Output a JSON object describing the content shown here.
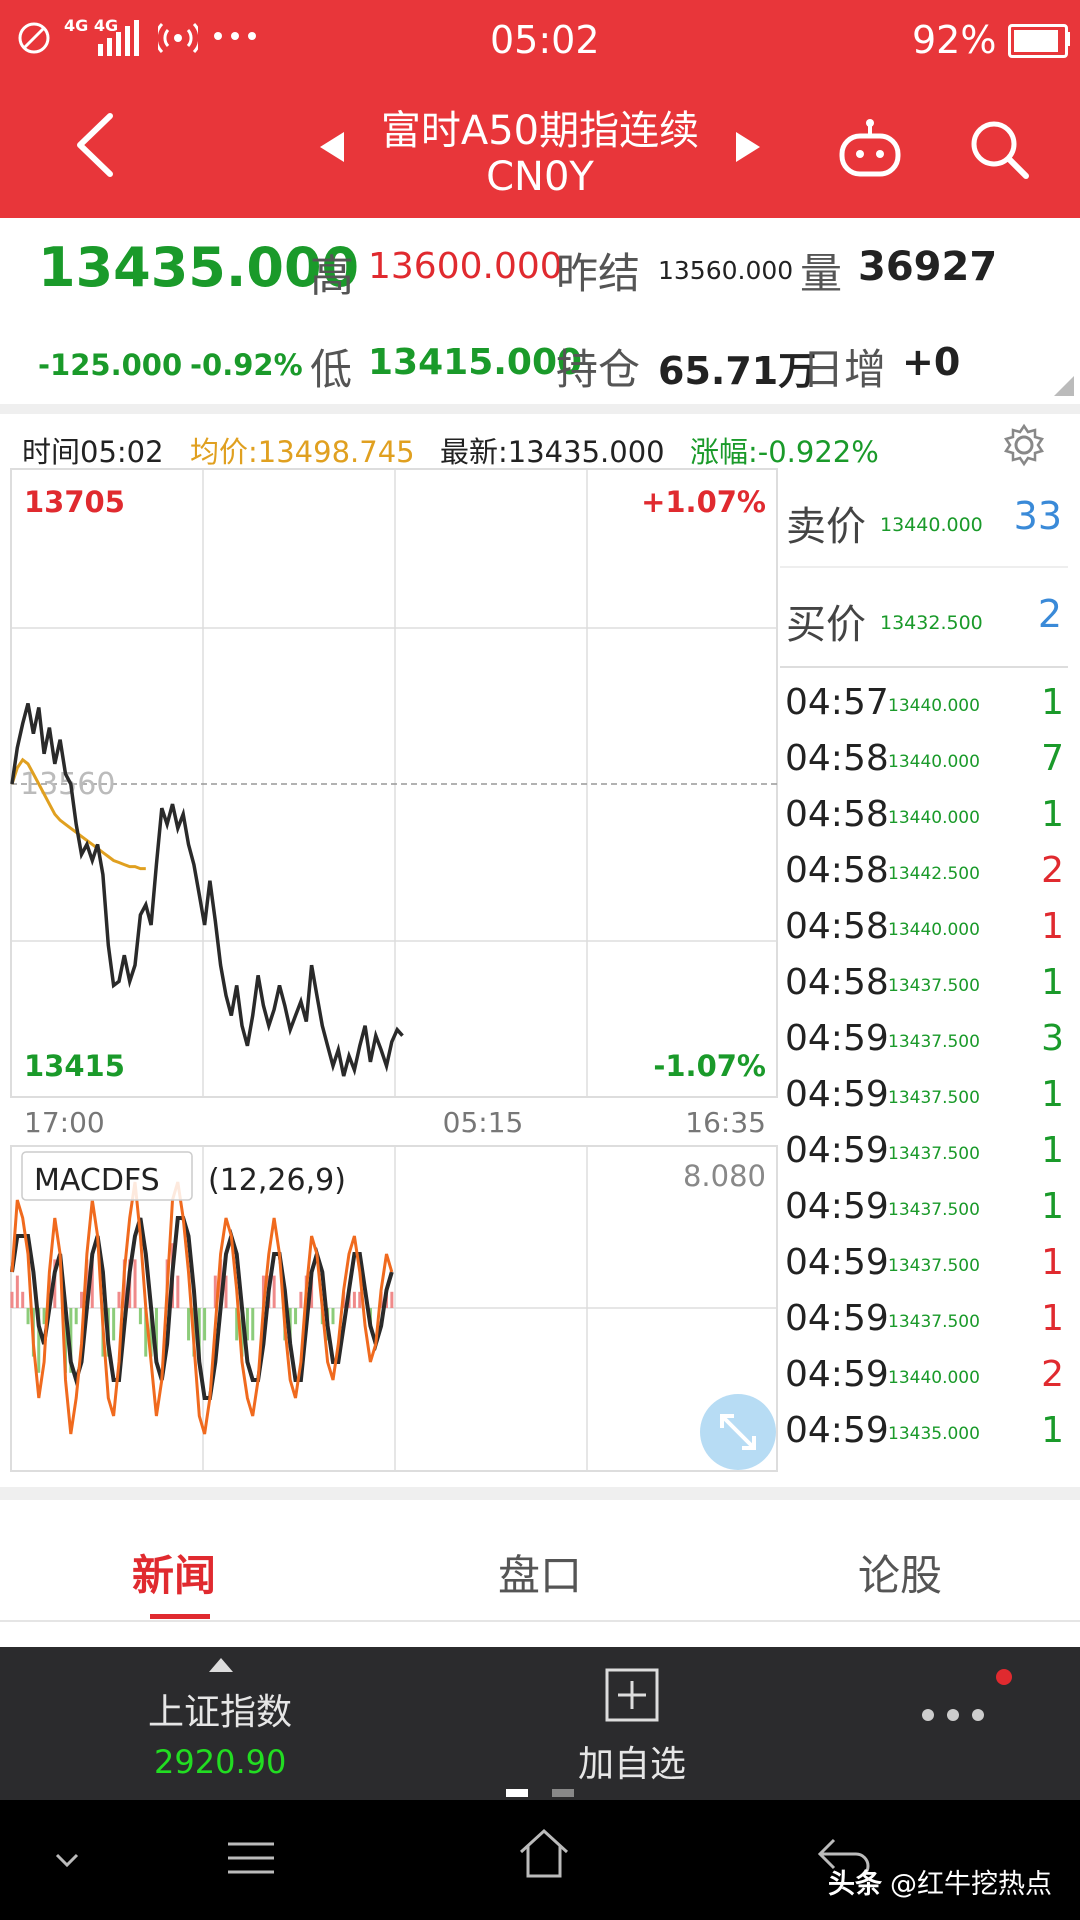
{
  "status_bar": {
    "network_label": "4G 4G",
    "time": "05:02",
    "battery": "92%"
  },
  "header": {
    "title": "富时A50期指连续",
    "code": "CN0Y"
  },
  "quote": {
    "last_price": "13435.000",
    "high_label": "高",
    "high_value": "13600.000",
    "prev_settle_label": "昨结",
    "prev_settle_value": "13560.000",
    "volume_label": "量",
    "volume_value": "36927",
    "change": "-125.000",
    "change_pct": "-0.92%",
    "low_label": "低",
    "low_value": "13415.000",
    "open_interest_label": "持仓",
    "open_interest_value": "65.71万",
    "daily_increase_label": "日增",
    "daily_increase_value": "+0"
  },
  "info_bar": {
    "time": "时间05:02",
    "avg_price": "均价:13498.745",
    "latest": "最新:13435.000",
    "change_pct": "涨幅:-0.922%"
  },
  "chart_data": {
    "type": "line",
    "y_top_label": "13705",
    "y_bottom_label": "13415",
    "pct_top_label": "+1.07%",
    "pct_bottom_label": "-1.07%",
    "ref_label": "13560",
    "ylim": [
      13415,
      13705
    ],
    "reference": 13560,
    "x_ticks": [
      "17:00",
      "05:15",
      "16:35"
    ],
    "series": [
      {
        "values": [
          13560,
          13578,
          13590,
          13600,
          13585,
          13598,
          13575,
          13588,
          13570,
          13582,
          13565,
          13560,
          13540,
          13525,
          13530,
          13522,
          13530,
          13515,
          13480,
          13460,
          13462,
          13475,
          13462,
          13470,
          13495,
          13500,
          13490,
          13520,
          13548,
          13540,
          13550,
          13538,
          13545,
          13530,
          13520,
          13505,
          13490,
          13512,
          13492,
          13470,
          13455,
          13445,
          13460,
          13440,
          13430,
          13445,
          13465,
          13450,
          13440,
          13448,
          13460,
          13450,
          13438,
          13445,
          13452,
          13442,
          13470,
          13455,
          13440,
          13430,
          13420,
          13428,
          13415,
          13425,
          13418,
          13430,
          13440,
          13422,
          13435,
          13428,
          13420,
          13432,
          13438,
          13435
        ]
      },
      {
        "values": [
          13560,
          13568,
          13572,
          13570,
          13565,
          13560,
          13555,
          13550,
          13545,
          13542,
          13540,
          13538,
          13536,
          13534,
          13532,
          13530,
          13528,
          13526,
          13524,
          13522,
          13521,
          13520,
          13519,
          13519,
          13518,
          13518
        ]
      }
    ],
    "macd": {
      "label": "MACDFS",
      "params": "(12,26,9)",
      "top_value": "8.080",
      "dif": [
        2,
        6,
        5,
        3,
        -2,
        -5,
        -3,
        2,
        5,
        3,
        -4,
        -7,
        -5,
        -2,
        3,
        6,
        4,
        -1,
        -5,
        -6,
        -3,
        2,
        5,
        7,
        4,
        0,
        -3,
        -6,
        -4,
        1,
        6,
        7,
        5,
        2,
        -2,
        -6,
        -7,
        -5,
        -1,
        3,
        5,
        4,
        1,
        -3,
        -5,
        -6,
        -4,
        0,
        3,
        5,
        3,
        -1,
        -4,
        -5,
        -3,
        1,
        4,
        3,
        0,
        -3,
        -4,
        -2,
        1,
        3,
        4,
        2,
        -1,
        -3,
        -2,
        1,
        3,
        2
      ],
      "dea": [
        2,
        4,
        4,
        4,
        2,
        -1,
        -2,
        0,
        2,
        3,
        0,
        -3,
        -4,
        -3,
        0,
        3,
        4,
        2,
        -2,
        -4,
        -4,
        -1,
        2,
        4,
        5,
        3,
        0,
        -3,
        -4,
        -2,
        2,
        5,
        5,
        4,
        1,
        -3,
        -5,
        -5,
        -3,
        0,
        3,
        4,
        3,
        0,
        -3,
        -4,
        -4,
        -2,
        1,
        3,
        3,
        1,
        -2,
        -4,
        -4,
        -1,
        2,
        3,
        2,
        -1,
        -3,
        -3,
        -1,
        1,
        3,
        3,
        1,
        -1,
        -2,
        -1,
        1,
        2
      ],
      "histogram": [
        1,
        2,
        1,
        -1,
        -3,
        -4,
        -1,
        2,
        3,
        0,
        -4,
        -4,
        -1,
        1,
        3,
        3,
        0,
        -3,
        -3,
        -2,
        1,
        3,
        3,
        3,
        -1,
        -3,
        -3,
        -3,
        0,
        3,
        4,
        2,
        0,
        -2,
        -3,
        -3,
        -2,
        0,
        2,
        3,
        2,
        0,
        -2,
        -3,
        -2,
        -2,
        0,
        2,
        2,
        2,
        0,
        -2,
        -2,
        -1,
        1,
        2,
        2,
        0,
        -1,
        -2,
        -1,
        0,
        1,
        1,
        1,
        1,
        0,
        -1,
        0,
        1,
        1,
        1
      ]
    }
  },
  "order_book": {
    "ask_label": "卖价",
    "ask_price": "13440.000",
    "ask_volume": "33",
    "bid_label": "买价",
    "bid_price": "13432.500",
    "bid_volume": "2"
  },
  "trades": [
    {
      "time": "04:57",
      "price": "13440.000",
      "vol": "1",
      "color": "#1a9a2a"
    },
    {
      "time": "04:58",
      "price": "13440.000",
      "vol": "7",
      "color": "#1a9a2a"
    },
    {
      "time": "04:58",
      "price": "13440.000",
      "vol": "1",
      "color": "#1a9a2a"
    },
    {
      "time": "04:58",
      "price": "13442.500",
      "vol": "2",
      "color": "#e02a2f"
    },
    {
      "time": "04:58",
      "price": "13440.000",
      "vol": "1",
      "color": "#e02a2f"
    },
    {
      "time": "04:58",
      "price": "13437.500",
      "vol": "1",
      "color": "#1a9a2a"
    },
    {
      "time": "04:59",
      "price": "13437.500",
      "vol": "3",
      "color": "#1a9a2a"
    },
    {
      "time": "04:59",
      "price": "13437.500",
      "vol": "1",
      "color": "#1a9a2a"
    },
    {
      "time": "04:59",
      "price": "13437.500",
      "vol": "1",
      "color": "#1a9a2a"
    },
    {
      "time": "04:59",
      "price": "13437.500",
      "vol": "1",
      "color": "#1a9a2a"
    },
    {
      "time": "04:59",
      "price": "13437.500",
      "vol": "1",
      "color": "#e02a2f"
    },
    {
      "time": "04:59",
      "price": "13437.500",
      "vol": "1",
      "color": "#e02a2f"
    },
    {
      "time": "04:59",
      "price": "13440.000",
      "vol": "2",
      "color": "#e02a2f"
    },
    {
      "time": "04:59",
      "price": "13435.000",
      "vol": "1",
      "color": "#1a9a2a"
    }
  ],
  "tabs": {
    "news": "新闻",
    "orderbook": "盘口",
    "discuss": "论股"
  },
  "toolbar": {
    "index_name": "上证指数",
    "index_value": "2920.90",
    "add_label": "加自选"
  },
  "watermark": {
    "source": "头条",
    "handle": "@红牛挖热点"
  },
  "colors": {
    "brand_red": "#e8363a",
    "up_red": "#e02a2f",
    "down_green": "#1a9a2a",
    "avg_line": "#e0a020",
    "bid_ask_blue": "#3a8ad8"
  }
}
